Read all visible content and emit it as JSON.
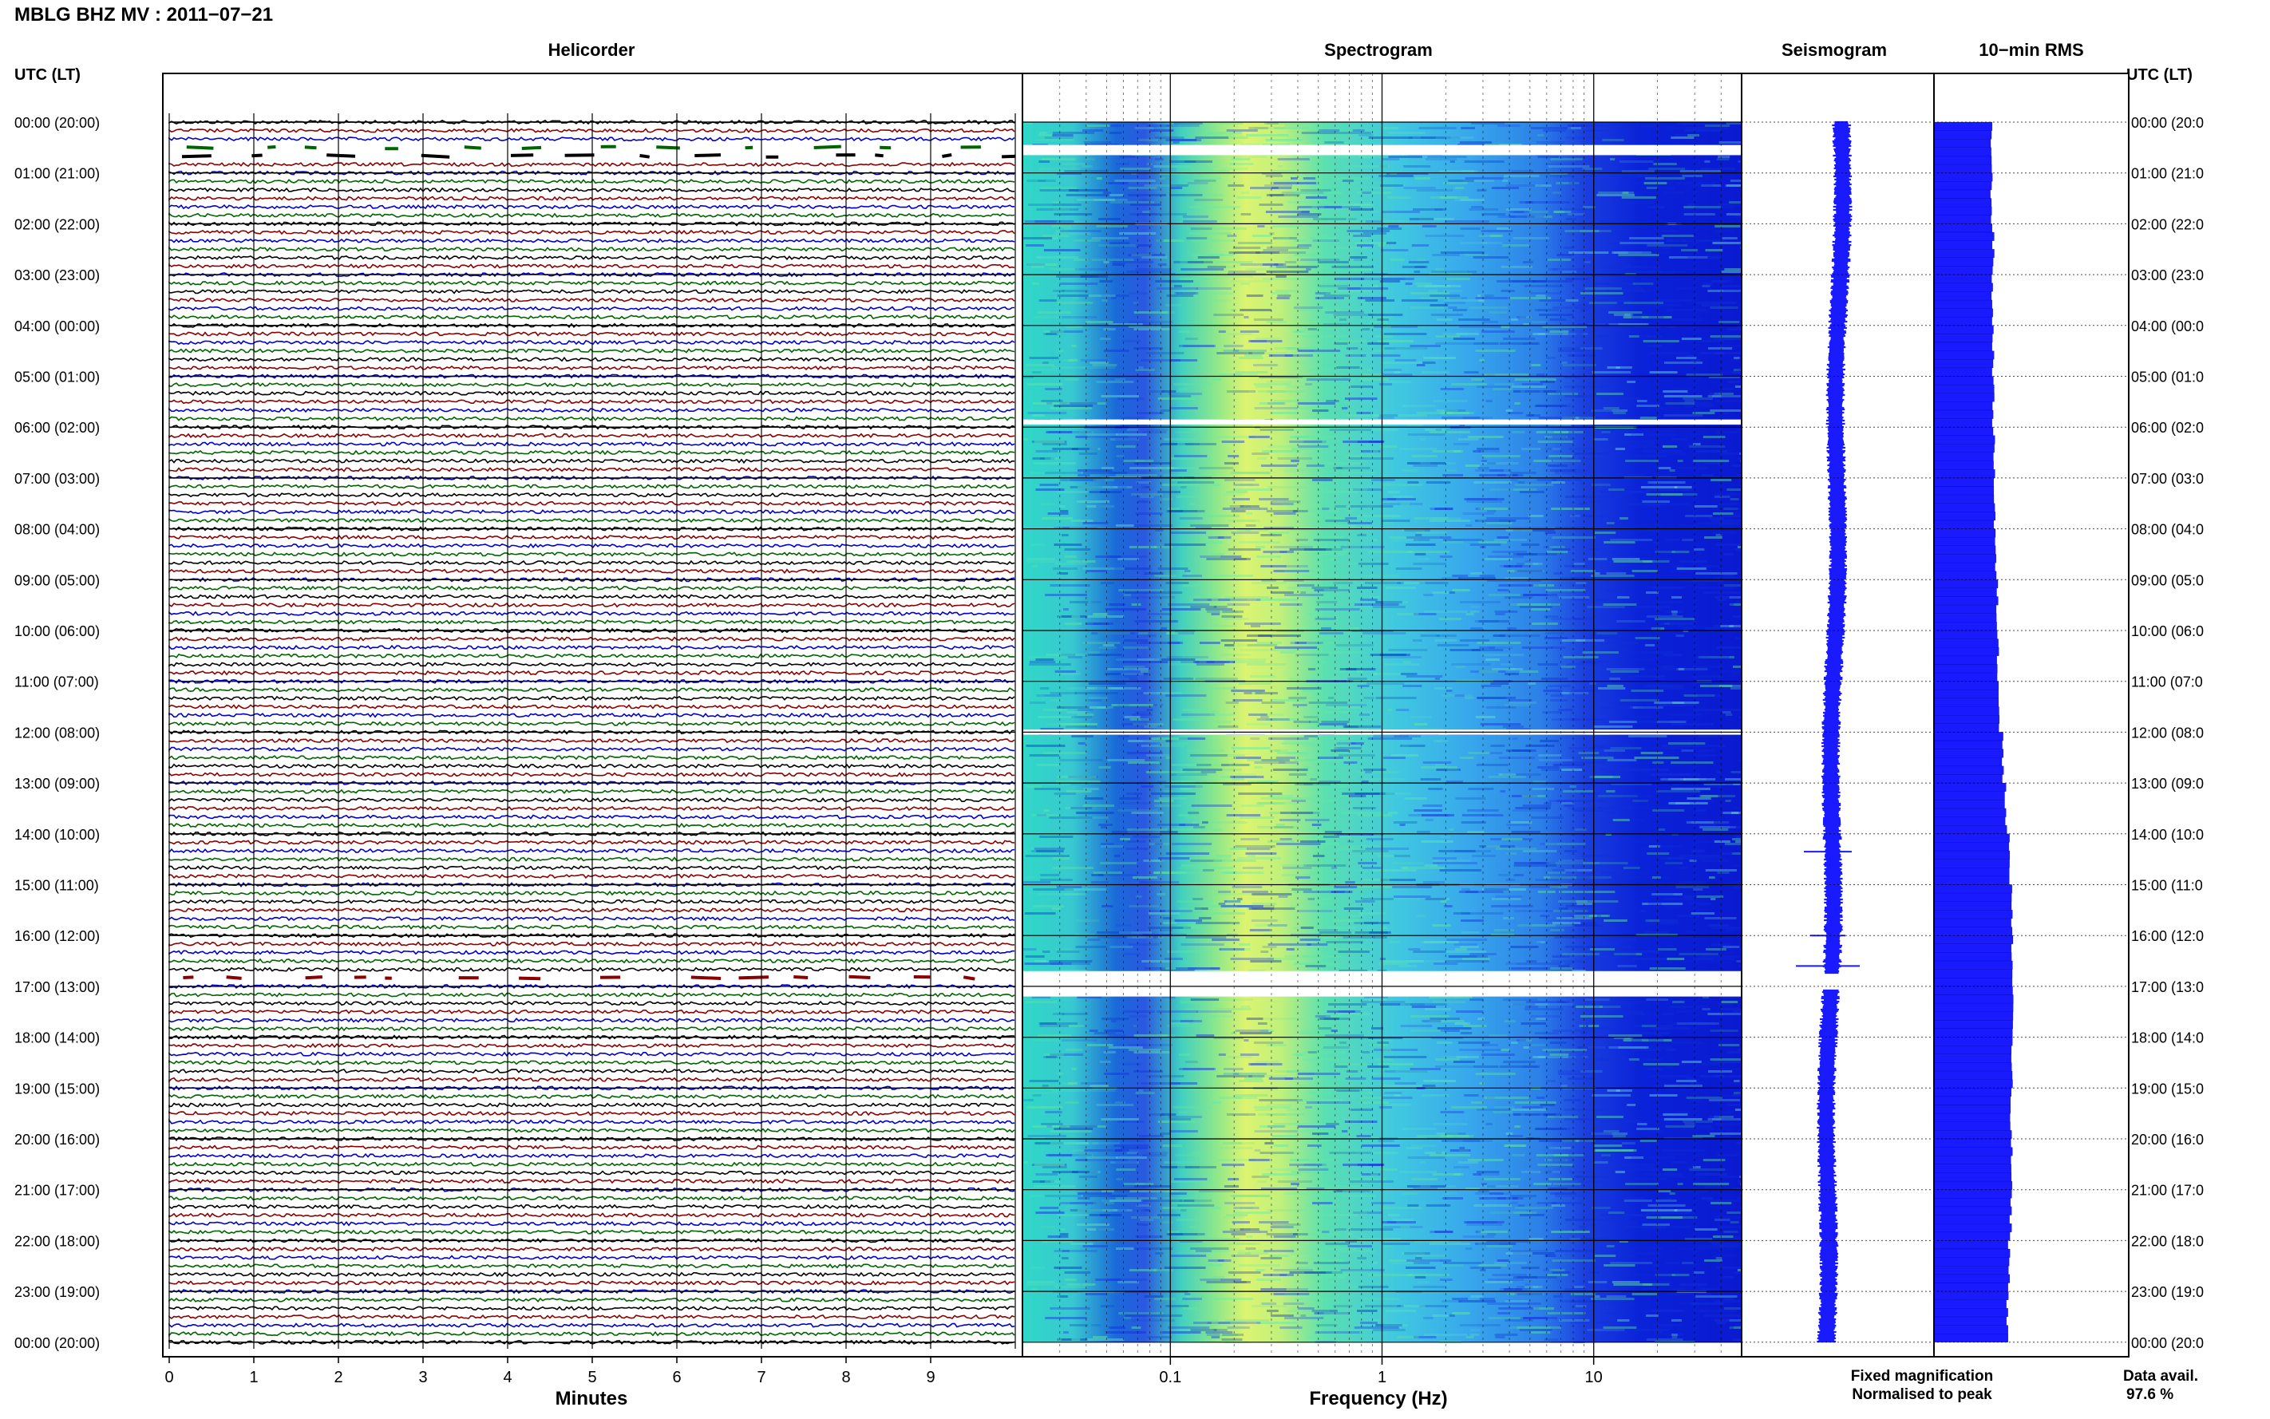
{
  "header": {
    "title": "MBLG BHZ MV : 2011−07−21",
    "utc_lt_left": "UTC (LT)",
    "utc_lt_right": "UTC (LT)"
  },
  "panels": {
    "helicorder": "Helicorder",
    "spectrogram": "Spectrogram",
    "seismogram": "Seismogram",
    "rms": "10−min RMS"
  },
  "footer": {
    "fixed_magnification": "Fixed magnification",
    "normalised_to_peak": "Normalised to peak",
    "data_avail_label": "Data avail.",
    "data_avail_value": "97.6 %"
  },
  "colors": {
    "trace_cycle": [
      "#000000",
      "#8b0000",
      "#0000cc",
      "#006400"
    ],
    "legend_fixed": "#0000ff",
    "legend_normalised": "#ff0000",
    "seismogram": "#1a1aff",
    "rms": "#1a1aff"
  },
  "chart_data": [
    {
      "type": "line",
      "name": "helicorder",
      "xlabel": "Minutes",
      "x_ticks": [
        "0",
        "1",
        "2",
        "3",
        "4",
        "5",
        "6",
        "7",
        "8",
        "9"
      ],
      "xlim": [
        0,
        10
      ],
      "time_labels_left": [
        "00:00 (20:00)",
        "01:00 (21:00)",
        "02:00 (22:00)",
        "03:00 (23:00)",
        "04:00 (00:00)",
        "05:00 (01:00)",
        "06:00 (02:00)",
        "07:00 (03:00)",
        "08:00 (04:00)",
        "09:00 (05:00)",
        "10:00 (06:00)",
        "11:00 (07:00)",
        "12:00 (08:00)",
        "13:00 (09:00)",
        "14:00 (10:00)",
        "15:00 (11:00)",
        "16:00 (12:00)",
        "17:00 (13:00)",
        "18:00 (14:00)",
        "19:00 (15:00)",
        "20:00 (16:00)",
        "21:00 (17:00)",
        "22:00 (18:00)",
        "23:00 (19:00)",
        "00:00 (20:00)"
      ],
      "time_labels_right": [
        "00:00 (20:0",
        "01:00 (21:0",
        "02:00 (22:0",
        "03:00 (23:0",
        "04:00 (00:0",
        "05:00 (01:0",
        "06:00 (02:0",
        "07:00 (03:0",
        "08:00 (04:0",
        "09:00 (05:0",
        "10:00 (06:0",
        "11:00 (07:0",
        "12:00 (08:0",
        "13:00 (09:0",
        "14:00 (10:0",
        "15:00 (11:0",
        "16:00 (12:0",
        "17:00 (13:0",
        "18:00 (14:0",
        "19:00 (15:0",
        "20:00 (16:0",
        "21:00 (17:0",
        "22:00 (18:0",
        "23:00 (19:0",
        "00:00 (20:0"
      ],
      "lines_per_hour": 6,
      "gaps_hours": [
        [
          0.5,
          0.67
        ],
        [
          16.67,
          17.0
        ]
      ]
    },
    {
      "type": "heatmap",
      "name": "spectrogram",
      "xlabel": "Frequency (Hz)",
      "x_scale": "log",
      "xlim": [
        0.02,
        50
      ],
      "x_ticks": [
        "0.1",
        "1",
        "10"
      ],
      "x_tick_values": [
        0.1,
        1,
        10
      ],
      "peak_band_hz": [
        0.2,
        0.5
      ],
      "gaps_hours": [
        [
          0.45,
          0.65
        ],
        [
          5.85,
          5.95
        ],
        [
          11.95,
          12.05
        ],
        [
          16.7,
          17.2
        ]
      ]
    },
    {
      "type": "line",
      "name": "seismogram_and_rms",
      "hours": [
        0,
        1,
        2,
        3,
        4,
        5,
        6,
        7,
        8,
        9,
        10,
        11,
        12,
        13,
        14,
        15,
        16,
        17,
        18,
        19,
        20,
        21,
        22,
        23
      ],
      "rms_relative": [
        0.72,
        0.72,
        0.74,
        0.73,
        0.74,
        0.74,
        0.75,
        0.76,
        0.77,
        0.79,
        0.8,
        0.82,
        0.86,
        0.9,
        0.95,
        0.97,
        0.98,
        0.99,
        0.97,
        0.96,
        0.97,
        0.96,
        0.94,
        0.92
      ]
    }
  ]
}
